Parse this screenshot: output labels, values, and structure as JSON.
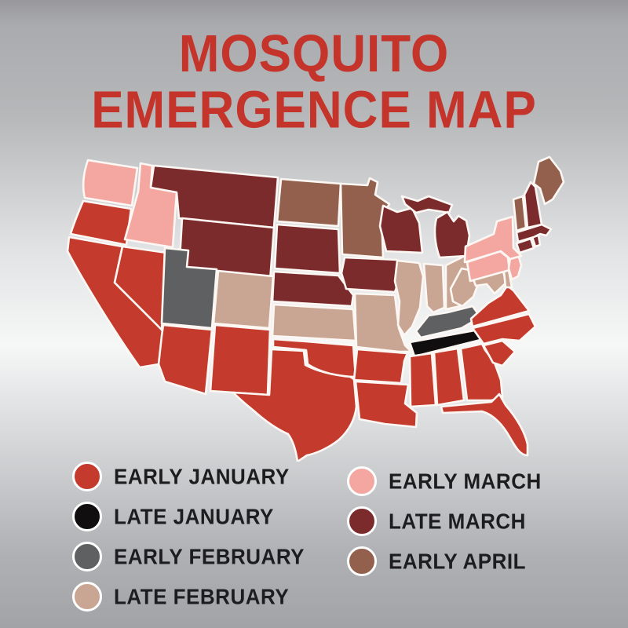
{
  "title": {
    "line1": "MOSQUITO",
    "line2": "EMERGENCE MAP",
    "color": "#c5342b"
  },
  "legend": {
    "items": [
      {
        "id": "early-january",
        "label": "EARLY JANUARY",
        "color": "#c43b2d"
      },
      {
        "id": "late-january",
        "label": "LATE JANUARY",
        "color": "#100e0e"
      },
      {
        "id": "early-february",
        "label": "EARLY FEBRUARY",
        "color": "#5f6062"
      },
      {
        "id": "late-february",
        "label": "LATE FEBRUARY",
        "color": "#c9a693"
      },
      {
        "id": "early-march",
        "label": "EARLY MARCH",
        "color": "#f4a7a1"
      },
      {
        "id": "late-march",
        "label": "LATE MARCH",
        "color": "#7c2b2d"
      },
      {
        "id": "early-april",
        "label": "EARLY APRIL",
        "color": "#92604c"
      }
    ],
    "columns": {
      "left": [
        "early-january",
        "late-january",
        "early-february",
        "late-february"
      ],
      "right": [
        "early-march",
        "late-march",
        "early-april"
      ]
    },
    "text_color": "#1d1d1f"
  },
  "map": {
    "border_color": "#ffffff",
    "states": {
      "WA": "early-march",
      "OR": "early-january",
      "CA": "early-january",
      "NV": "early-january",
      "ID": "early-march",
      "MT": "late-march",
      "WY": "late-march",
      "UT": "early-february",
      "CO": "late-february",
      "AZ": "early-january",
      "NM": "early-january",
      "ND": "early-april",
      "SD": "late-march",
      "NE": "late-march",
      "KS": "late-february",
      "OK": "early-january",
      "TX": "early-january",
      "MN": "early-april",
      "IA": "late-march",
      "MO": "late-february",
      "AR": "early-january",
      "LA": "early-january",
      "WI": "late-march",
      "IL": "late-february",
      "MI": "late-march",
      "IN": "late-february",
      "OH": "late-february",
      "KY": "early-february",
      "TN": "late-january",
      "MS": "early-january",
      "AL": "early-january",
      "GA": "early-january",
      "FL": "early-january",
      "SC": "early-january",
      "NC": "early-january",
      "VA": "early-january",
      "WV": "late-february",
      "MD": "late-february",
      "DE": "late-february",
      "PA": "early-march",
      "NJ": "early-march",
      "NY": "early-march",
      "CT": "late-march",
      "RI": "late-march",
      "MA": "late-march",
      "VT": "early-april",
      "NH": "late-march",
      "ME": "early-april"
    }
  }
}
